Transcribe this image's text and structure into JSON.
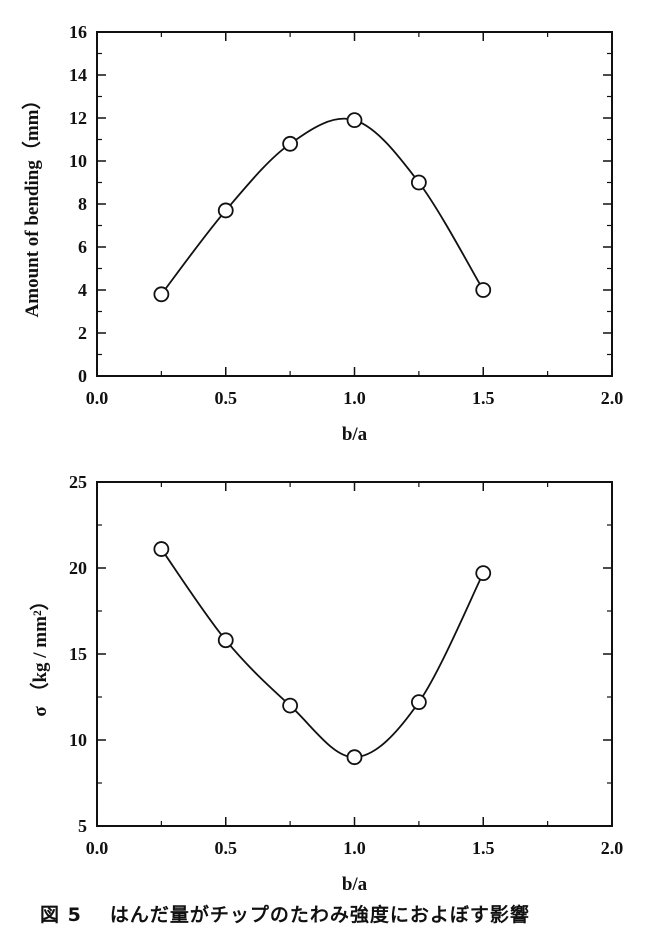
{
  "caption": {
    "figure_number": "図 5",
    "text": "はんだ量がチップのたわみ強度におよぼす影響"
  },
  "chart_data": [
    {
      "type": "line",
      "xlabel": "b/a",
      "ylabel": "Amount of bending（mm）",
      "xlim": [
        0.0,
        2.0
      ],
      "ylim": [
        0,
        16
      ],
      "x_ticks": [
        "0.0",
        "0.5",
        "1.0",
        "1.5",
        "2.0"
      ],
      "y_ticks": [
        "0",
        "2",
        "4",
        "6",
        "8",
        "10",
        "12",
        "14",
        "16"
      ],
      "grid": false,
      "series": [
        {
          "x": [
            0.25,
            0.5,
            0.75,
            1.0,
            1.25,
            1.5
          ],
          "values": [
            3.8,
            7.7,
            10.8,
            11.9,
            9.0,
            4.0
          ]
        }
      ]
    },
    {
      "type": "line",
      "xlabel": "b/a",
      "ylabel": "σ （kg / mm²）",
      "xlim": [
        0.0,
        2.0
      ],
      "ylim": [
        5,
        25
      ],
      "x_ticks": [
        "0.0",
        "0.5",
        "1.0",
        "1.5",
        "2.0"
      ],
      "y_ticks": [
        "5",
        "10",
        "15",
        "20",
        "25"
      ],
      "grid": false,
      "series": [
        {
          "x": [
            0.25,
            0.5,
            0.75,
            1.0,
            1.25,
            1.5
          ],
          "values": [
            21.1,
            15.8,
            12.0,
            9.0,
            12.2,
            19.7
          ]
        }
      ]
    }
  ]
}
